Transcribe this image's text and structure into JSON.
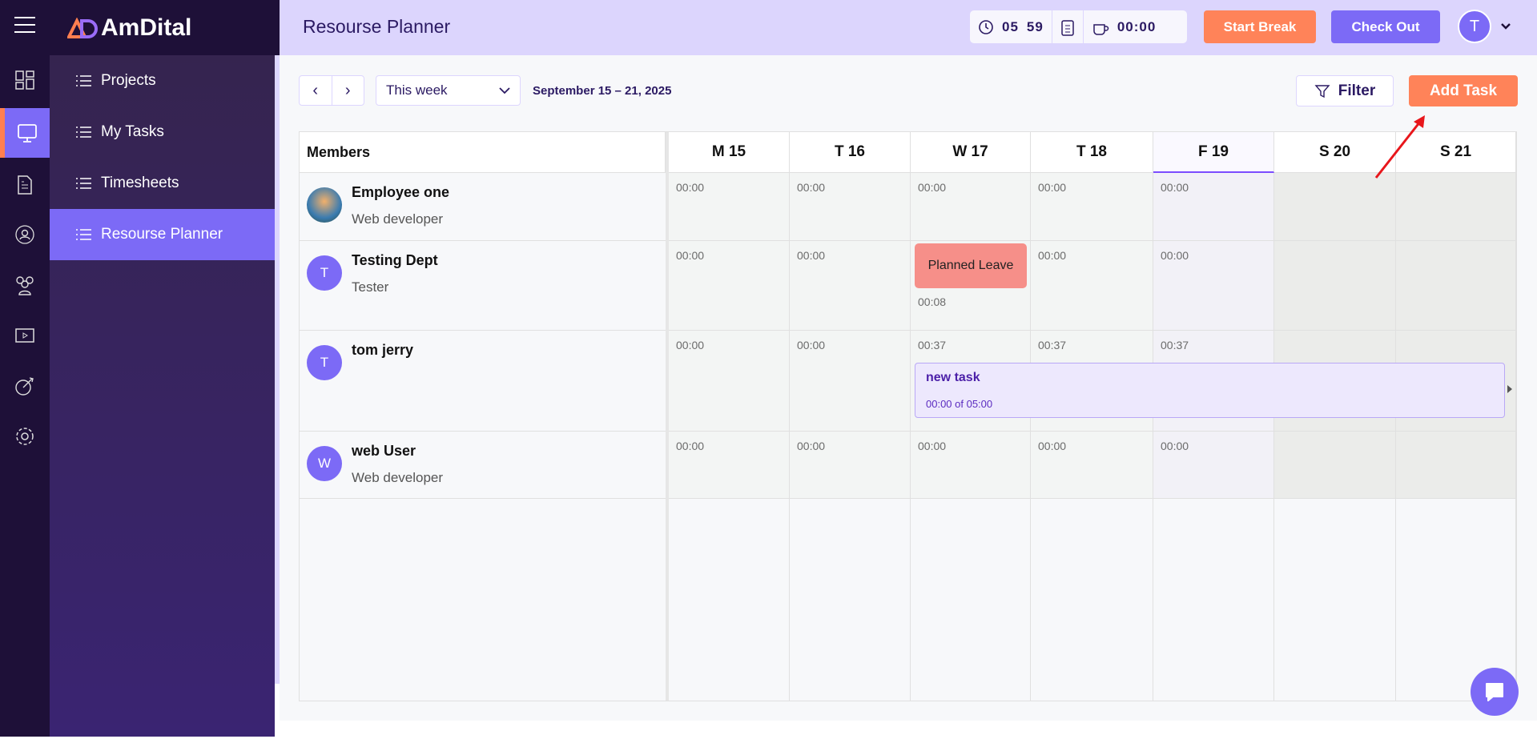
{
  "app": {
    "brand": "AmDital",
    "page_title": "Resourse Planner"
  },
  "rail": {
    "icons": [
      "dashboard-icon",
      "monitor-icon",
      "document-icon",
      "user-network-icon",
      "team-icon",
      "video-icon",
      "target-icon",
      "gear-icon"
    ],
    "active": 1
  },
  "nav": {
    "items": [
      {
        "label": "Projects",
        "icon": "list-icon"
      },
      {
        "label": "My Tasks",
        "icon": "checklist-icon"
      },
      {
        "label": "Timesheets",
        "icon": "calendar-clock-icon"
      },
      {
        "label": "Resourse Planner",
        "icon": "user-check-icon",
        "active": true
      }
    ]
  },
  "header": {
    "timer_hours": "05",
    "timer_minutes": "59",
    "break_time": "00:00",
    "start_break": "Start Break",
    "check_out": "Check Out",
    "avatar_initial": "T"
  },
  "toolbar": {
    "period": "This week",
    "date_range": "September 15 – 21, 2025",
    "filter": "Filter",
    "add_task": "Add Task"
  },
  "grid": {
    "members_header": "Members",
    "days": [
      "M 15",
      "T 16",
      "W 17",
      "T 18",
      "F 19",
      "S 20",
      "S 21"
    ],
    "today_index": 4,
    "rows": [
      {
        "name": "Employee one",
        "role": "Web developer",
        "initial": "",
        "photo": true,
        "times": [
          "00:00",
          "00:00",
          "00:00",
          "00:00",
          "00:00"
        ]
      },
      {
        "name": "Testing Dept",
        "role": "Tester",
        "initial": "T",
        "times": [
          "00:00",
          "00:00",
          "00:08",
          "00:00",
          "00:00"
        ],
        "leave": {
          "day": 2,
          "label": "Planned Leave"
        }
      },
      {
        "name": "tom jerry",
        "role": "",
        "initial": "T",
        "times": [
          "00:00",
          "00:00",
          "00:37",
          "00:37",
          "00:37"
        ],
        "task": {
          "name": "new task",
          "hours": "00:00 of 05:00"
        }
      },
      {
        "name": "web User",
        "role": "Web developer",
        "initial": "W",
        "times": [
          "00:00",
          "00:00",
          "00:00",
          "00:00",
          "00:00"
        ]
      }
    ]
  },
  "colors": {
    "accent": "#7c6af6",
    "orange": "#ff8359",
    "rail": "#1e1038",
    "leave": "#f68f89"
  }
}
